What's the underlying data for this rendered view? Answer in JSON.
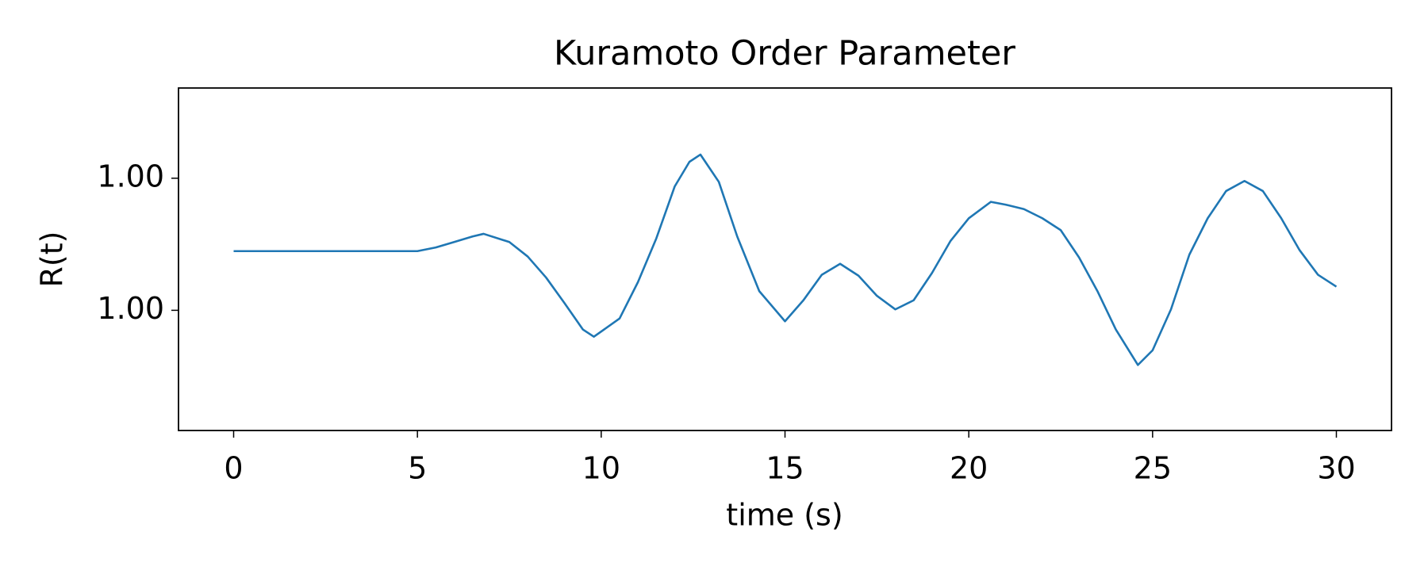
{
  "chart_data": {
    "type": "line",
    "title": "Kuramoto Order Parameter",
    "x_label": "time (s)",
    "y_label": "R(t)",
    "x": [
      0,
      5,
      5.5,
      6,
      6.5,
      6.8,
      7.5,
      8,
      8.5,
      9,
      9.5,
      9.8,
      10.5,
      11,
      11.5,
      12,
      12.4,
      12.7,
      13.2,
      13.7,
      14.3,
      15,
      15.5,
      16,
      16.5,
      17,
      17.5,
      18,
      18.5,
      19,
      19.5,
      20,
      20.6,
      21,
      21.5,
      22,
      22.5,
      23,
      23.5,
      24,
      24.6,
      25,
      25.5,
      26,
      26.5,
      27,
      27.5,
      28,
      28.5,
      29,
      29.5,
      30
    ],
    "series": [
      {
        "color": "#1f77b4",
        "values": [
          1.00000448,
          1.00000448,
          1.00000476,
          1.00000517,
          1.00000559,
          1.00000579,
          1.00000517,
          1.00000407,
          1.00000248,
          1.00000055,
          0.99999855,
          0.999998,
          0.99999938,
          1.00000214,
          1.00000545,
          1.00000938,
          1.00001124,
          1.00001179,
          1.00000972,
          1.00000559,
          1.00000145,
          0.99999917,
          1.00000076,
          1.00000269,
          1.00000352,
          1.00000262,
          1.0000011,
          1.00000007,
          1.00000076,
          1.00000283,
          1.00000524,
          1.00000697,
          1.00000821,
          1.000008,
          1.00000766,
          1.00000697,
          1.00000607,
          1.000004,
          1.00000145,
          0.99999855,
          0.99999586,
          0.99999697,
          1.00000007,
          1.00000421,
          1.00000697,
          1.00000903,
          1.00000979,
          1.00000903,
          1.00000697,
          1.00000455,
          1.00000269,
          1.00000179
        ]
      }
    ],
    "xlim": [
      -1.5,
      31.5
    ],
    "xticks": [
      0,
      5,
      10,
      15,
      20,
      25,
      30
    ],
    "ylim": [
      0.9999909,
      1.00001683
    ],
    "yticks": [
      {
        "value": 1,
        "label": "1.00"
      },
      {
        "value": 1.00001,
        "label": "1.00"
      }
    ],
    "grid": false
  }
}
